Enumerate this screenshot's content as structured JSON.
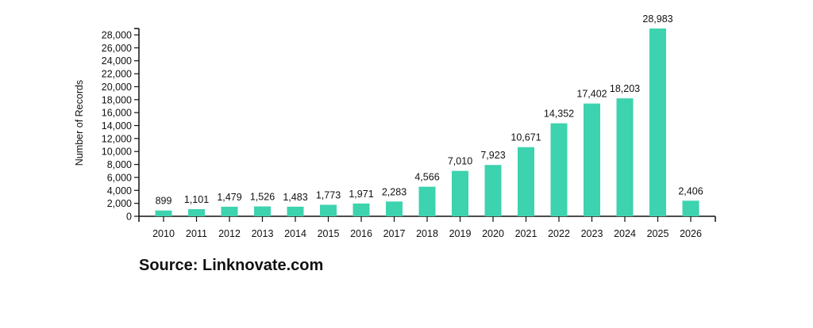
{
  "chart_data": {
    "type": "bar",
    "title": "",
    "xlabel": "",
    "ylabel": "Number of Records",
    "categories": [
      "2010",
      "2011",
      "2012",
      "2013",
      "2014",
      "2015",
      "2016",
      "2017",
      "2018",
      "2019",
      "2020",
      "2021",
      "2022",
      "2023",
      "2024",
      "2025",
      "2026"
    ],
    "values": [
      899,
      1101,
      1479,
      1526,
      1483,
      1773,
      1971,
      2283,
      4566,
      7010,
      7923,
      10671,
      14352,
      17402,
      18203,
      28983,
      2406
    ],
    "data_labels": [
      "899",
      "1,101",
      "1,479",
      "1,526",
      "1,483",
      "1,773",
      "1,971",
      "2,283",
      "4,566",
      "7,010",
      "7,923",
      "10,671",
      "14,352",
      "17,402",
      "18,203",
      "28,983",
      "2,406"
    ],
    "yticks": [
      "0",
      "2,000",
      "4,000",
      "6,000",
      "8,000",
      "10,000",
      "12,000",
      "14,000",
      "16,000",
      "18,000",
      "20,000",
      "22,000",
      "24,000",
      "26,000",
      "28,000"
    ],
    "ylim": [
      0,
      29000
    ],
    "grid": false,
    "bar_color": "#3dd3ae"
  },
  "source": "Source: Linknovate.com"
}
